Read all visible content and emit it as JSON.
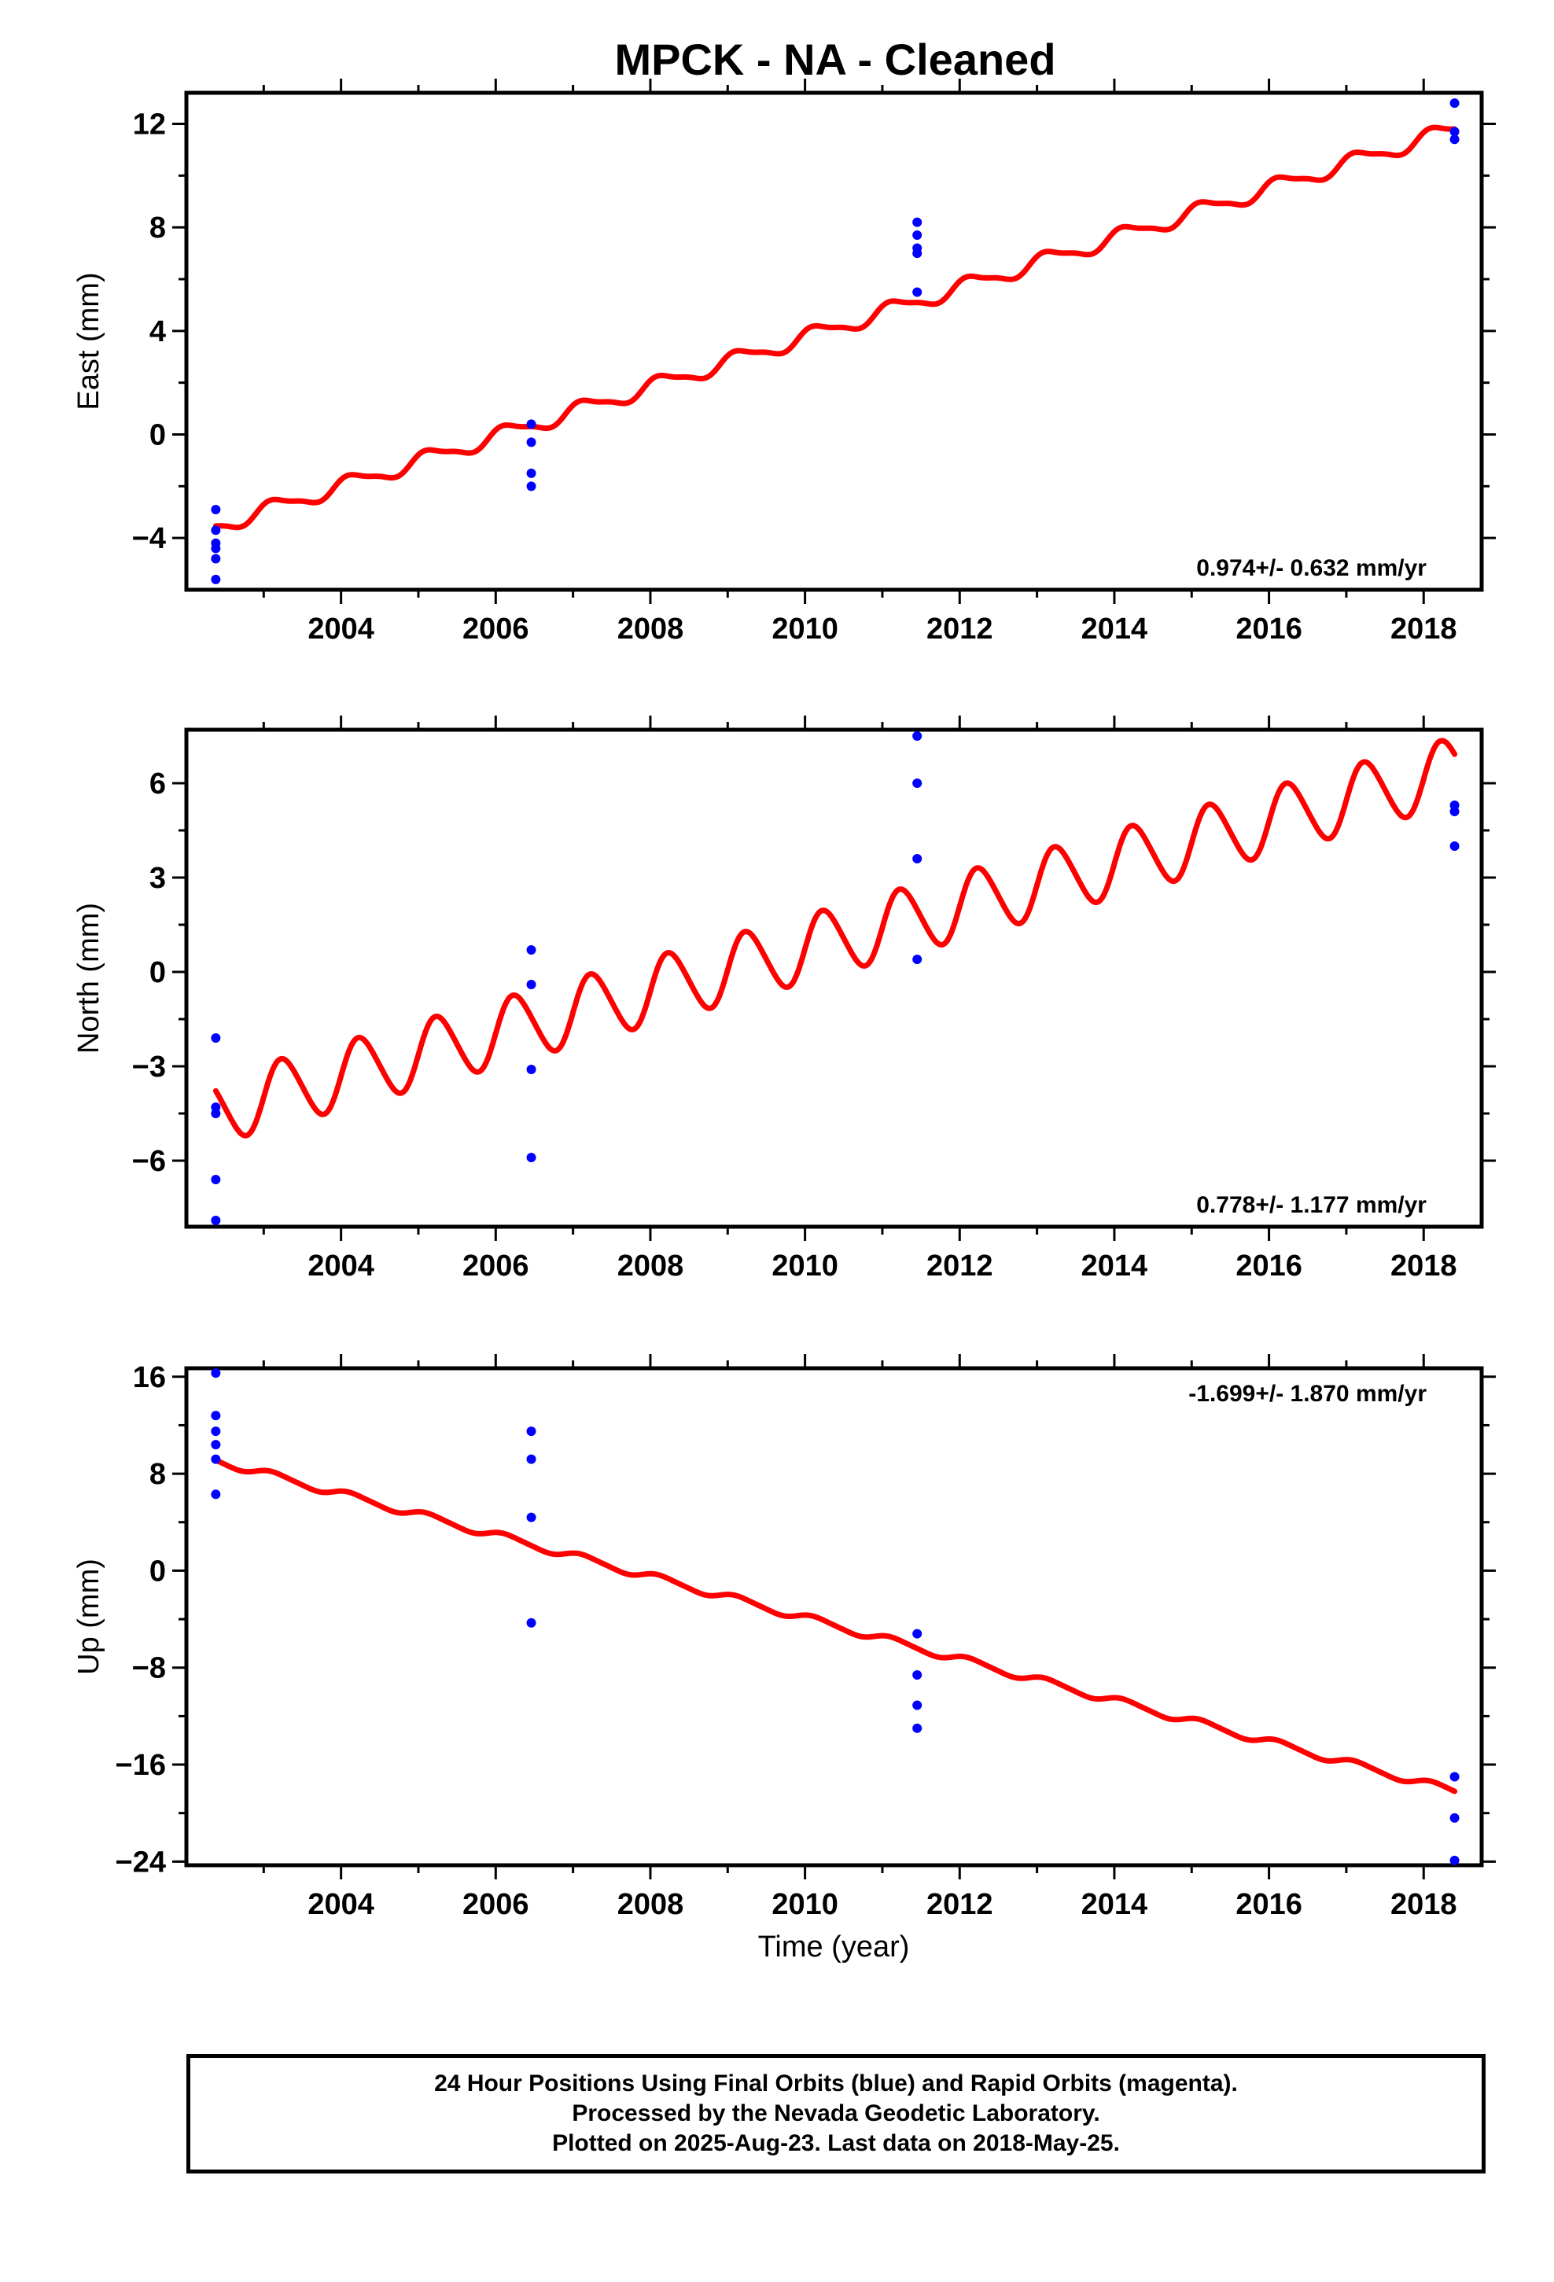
{
  "chart_data": {
    "title": "MPCK  - NA - Cleaned",
    "xlabel": "Time (year)",
    "x_ticks": [
      "2004",
      "2006",
      "2008",
      "2010",
      "2012",
      "2014",
      "2016",
      "2018"
    ],
    "xlim": [
      2002.0,
      2018.75
    ],
    "colors": {
      "data": "#0000ff",
      "model": "#ff0000",
      "axes": "#000000"
    },
    "panels": [
      {
        "type": "scatter+line",
        "ylabel": "East (mm)",
        "ylim": [
          -6.0,
          13.2
        ],
        "y_ticks": [
          "12",
          "8",
          "4",
          "0",
          "−4"
        ],
        "y_tick_values": [
          12,
          8,
          4,
          0,
          -4
        ],
        "rate_label": "0.974+/- 0.632 mm/yr",
        "rate_position": "bottom-right",
        "points": [
          {
            "x": 2002.38,
            "y": -2.9
          },
          {
            "x": 2002.38,
            "y": -3.7
          },
          {
            "x": 2002.38,
            "y": -4.2
          },
          {
            "x": 2002.38,
            "y": -4.4
          },
          {
            "x": 2002.38,
            "y": -4.8
          },
          {
            "x": 2002.38,
            "y": -5.6
          },
          {
            "x": 2006.46,
            "y": 0.4
          },
          {
            "x": 2006.46,
            "y": -0.3
          },
          {
            "x": 2006.46,
            "y": -1.5
          },
          {
            "x": 2006.46,
            "y": -2.0
          },
          {
            "x": 2011.45,
            "y": 8.2
          },
          {
            "x": 2011.45,
            "y": 7.7
          },
          {
            "x": 2011.45,
            "y": 7.2
          },
          {
            "x": 2011.45,
            "y": 7.0
          },
          {
            "x": 2011.45,
            "y": 5.5
          },
          {
            "x": 2018.4,
            "y": 12.8
          },
          {
            "x": 2018.4,
            "y": 11.7
          },
          {
            "x": 2018.4,
            "y": 11.4
          }
        ],
        "model": {
          "start_x": 2002.38,
          "end_x": 2018.4,
          "start_y": -3.55,
          "end_y": 11.8,
          "annual_amplitude": 0.3,
          "semiannual_amplitude": 0.08,
          "phase": 0.1
        }
      },
      {
        "type": "scatter+line",
        "ylabel": "North (mm)",
        "ylim": [
          -8.1,
          7.7
        ],
        "y_ticks": [
          "6",
          "3",
          "0",
          "−3",
          "−6"
        ],
        "y_tick_values": [
          6,
          3,
          0,
          -3,
          -6
        ],
        "rate_label": "0.778+/- 1.177 mm/yr",
        "rate_position": "bottom-right",
        "points": [
          {
            "x": 2002.38,
            "y": -2.1
          },
          {
            "x": 2002.38,
            "y": -4.3
          },
          {
            "x": 2002.38,
            "y": -4.5
          },
          {
            "x": 2002.38,
            "y": -6.6
          },
          {
            "x": 2002.38,
            "y": -7.9
          },
          {
            "x": 2006.46,
            "y": 0.7
          },
          {
            "x": 2006.46,
            "y": -0.4
          },
          {
            "x": 2006.46,
            "y": -3.1
          },
          {
            "x": 2006.46,
            "y": -5.9
          },
          {
            "x": 2011.45,
            "y": 7.5
          },
          {
            "x": 2011.45,
            "y": 6.0
          },
          {
            "x": 2011.45,
            "y": 3.6
          },
          {
            "x": 2011.45,
            "y": 0.4
          },
          {
            "x": 2018.4,
            "y": 5.3
          },
          {
            "x": 2018.4,
            "y": 5.1
          },
          {
            "x": 2018.4,
            "y": 4.0
          }
        ],
        "model": {
          "start_x": 2002.38,
          "end_x": 2018.4,
          "start_y": -4.4,
          "end_y": 6.4,
          "annual_amplitude": 1.05,
          "semiannual_amplitude": 0.1,
          "phase": 0.0
        }
      },
      {
        "type": "scatter+line",
        "ylabel": "Up (mm)",
        "ylim": [
          -24.3,
          16.7
        ],
        "y_ticks": [
          "16",
          "8",
          "0",
          "−8",
          "−16",
          "−24"
        ],
        "y_tick_values": [
          16,
          8,
          0,
          -8,
          -16,
          -24
        ],
        "rate_label": "-1.699+/- 1.870 mm/yr",
        "rate_position": "top-right",
        "points": [
          {
            "x": 2002.38,
            "y": 16.3
          },
          {
            "x": 2002.38,
            "y": 12.8
          },
          {
            "x": 2002.38,
            "y": 11.5
          },
          {
            "x": 2002.38,
            "y": 10.4
          },
          {
            "x": 2002.38,
            "y": 9.2
          },
          {
            "x": 2002.38,
            "y": 6.3
          },
          {
            "x": 2006.46,
            "y": 11.5
          },
          {
            "x": 2006.46,
            "y": 9.2
          },
          {
            "x": 2006.46,
            "y": 4.4
          },
          {
            "x": 2006.46,
            "y": -4.3
          },
          {
            "x": 2011.45,
            "y": -5.2
          },
          {
            "x": 2011.45,
            "y": -8.6
          },
          {
            "x": 2011.45,
            "y": -11.1
          },
          {
            "x": 2011.45,
            "y": -13.0
          },
          {
            "x": 2018.4,
            "y": -17.0
          },
          {
            "x": 2018.4,
            "y": -20.4
          },
          {
            "x": 2018.4,
            "y": -23.9
          }
        ],
        "model": {
          "start_x": 2002.38,
          "end_x": 2018.4,
          "start_y": 9.1,
          "end_y": -18.2,
          "annual_amplitude": 0.3,
          "semiannual_amplitude": 0.05,
          "phase": 0.1
        }
      }
    ]
  },
  "footer": {
    "line1": "24 Hour Positions Using Final Orbits (blue) and Rapid Orbits (magenta).",
    "line2": "Processed by the Nevada Geodetic Laboratory.",
    "line3": "Plotted on 2025-Aug-23. Last data on 2018-May-25."
  }
}
